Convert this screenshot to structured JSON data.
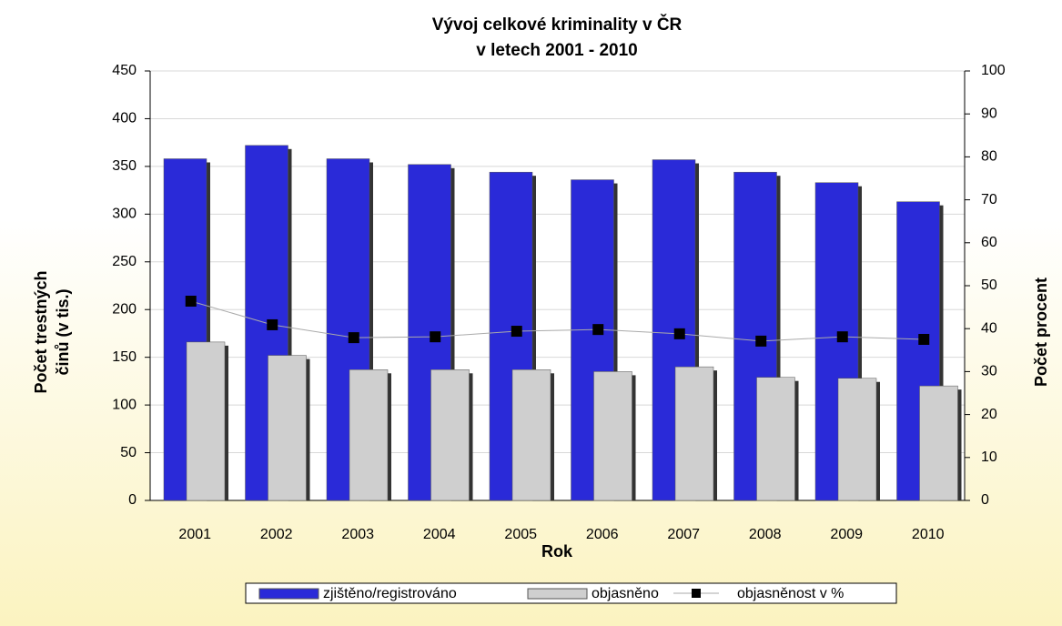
{
  "chart_data": {
    "type": "bar",
    "title": "Vývoj celkové kriminality v ČR",
    "subtitle": "v letech 2001 - 2010",
    "xlabel": "Rok",
    "ylabel": [
      "Počet trestných",
      "činů (v tis.)"
    ],
    "y2label": "Počet procent",
    "categories": [
      "2001",
      "2002",
      "2003",
      "2004",
      "2005",
      "2006",
      "2007",
      "2008",
      "2009",
      "2010"
    ],
    "series": [
      {
        "name": "zjištěno/registrováno",
        "color": "#2a2ad8",
        "type": "bar",
        "values": [
          358,
          372,
          358,
          352,
          344,
          336,
          357,
          344,
          333,
          313
        ]
      },
      {
        "name": "objasněno",
        "color": "#cfcfcf",
        "type": "bar",
        "values": [
          166,
          152,
          137,
          137,
          137,
          135,
          140,
          129,
          128,
          120
        ]
      },
      {
        "name": "objasněnost v %",
        "color": "#000000",
        "type": "line",
        "axis": "y2",
        "values": [
          46.4,
          40.9,
          37.9,
          38.1,
          39.4,
          39.8,
          38.8,
          37.1,
          38.1,
          37.5
        ]
      }
    ],
    "ylim": [
      0,
      450
    ],
    "yticks": [
      0,
      50,
      100,
      150,
      200,
      250,
      300,
      350,
      400,
      450
    ],
    "y2lim": [
      0,
      100
    ],
    "y2ticks": [
      0,
      10,
      20,
      30,
      40,
      50,
      60,
      70,
      80,
      90,
      100
    ],
    "grid": true
  }
}
